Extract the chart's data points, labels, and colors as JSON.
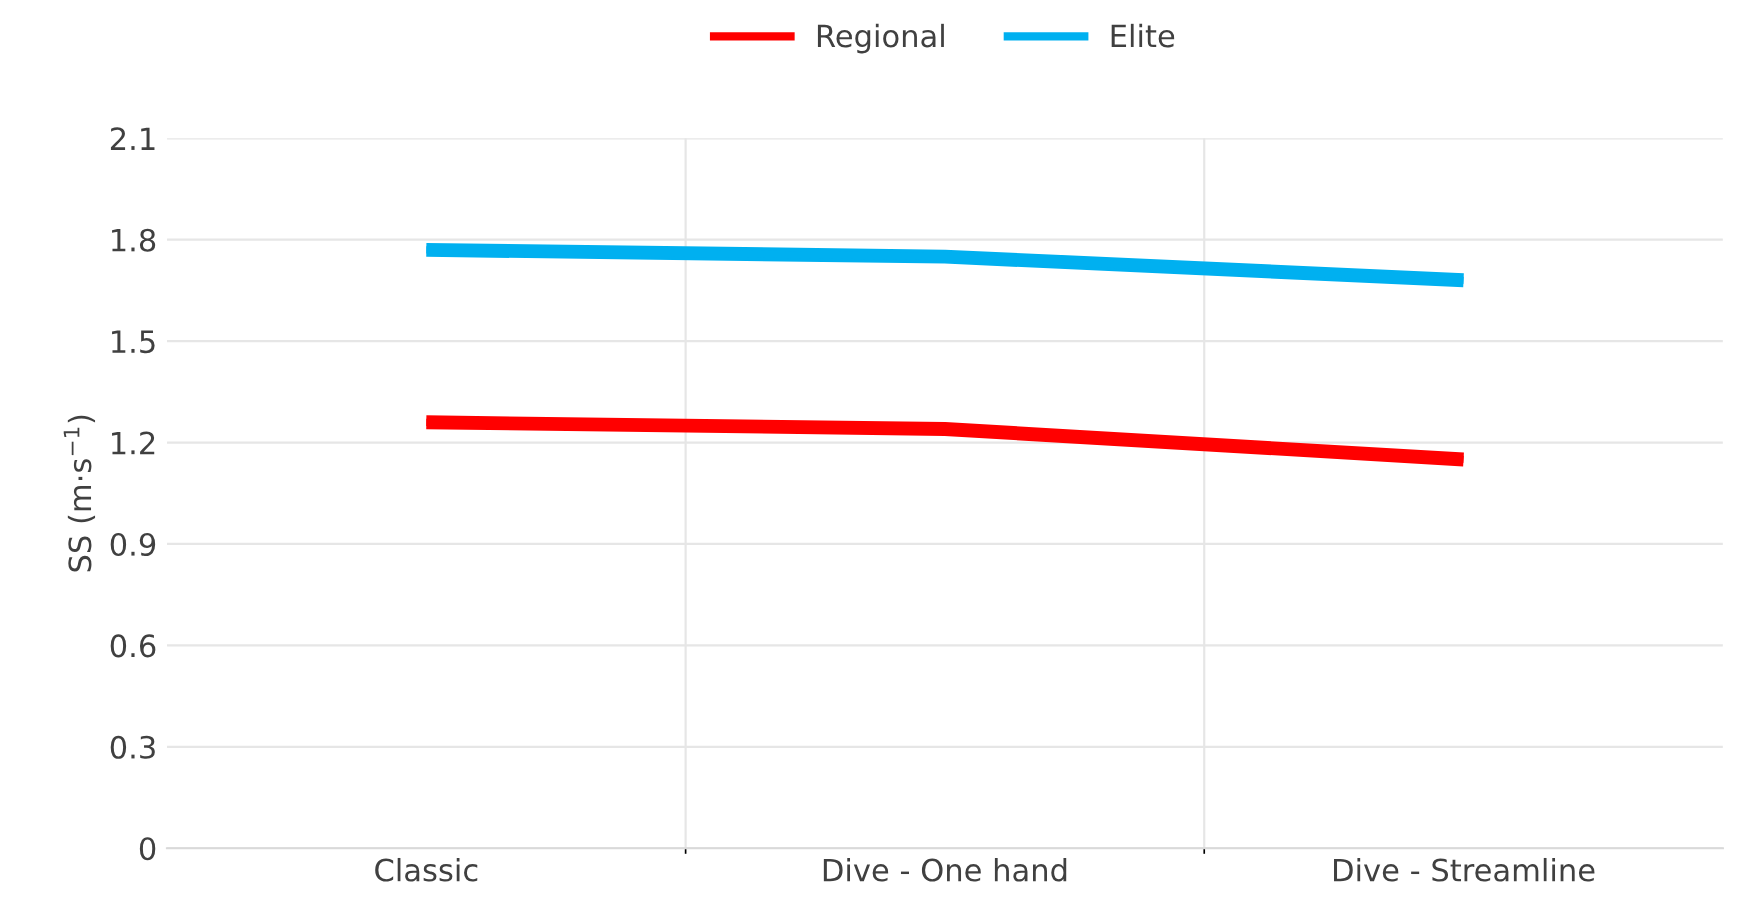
{
  "chart_data": {
    "type": "line",
    "ylabel": "SS (m·s$^{−1}$)",
    "categories": [
      "Classic",
      "Dive - One hand",
      "Dive - Streamline"
    ],
    "series": [
      {
        "name": "Regional",
        "color": "#ff0000",
        "values": [
          1.26,
          1.24,
          1.15
        ]
      },
      {
        "name": "Elite",
        "color": "#00b0f0",
        "values": [
          1.77,
          1.75,
          1.68
        ]
      }
    ],
    "ylim": [
      0,
      2.1
    ],
    "yticks": [
      0,
      0.3,
      0.6,
      0.9,
      1.2,
      1.5,
      1.8,
      2.1
    ],
    "grid": true,
    "legend": "top",
    "marker": "none",
    "line_style": "solid"
  }
}
